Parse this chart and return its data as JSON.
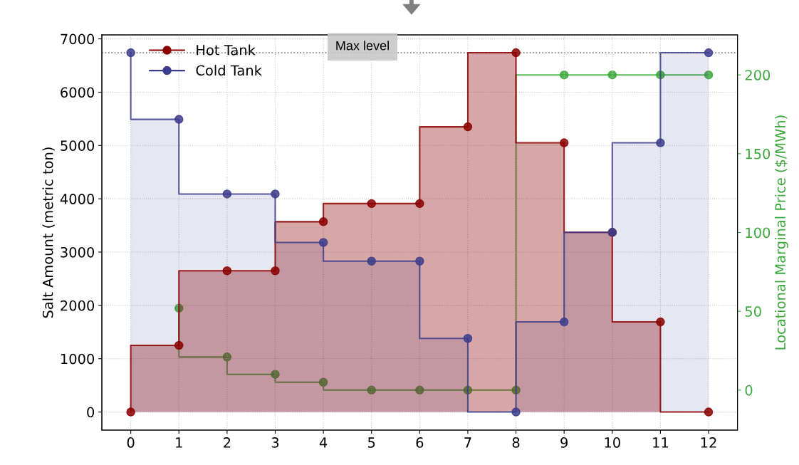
{
  "chart_data": {
    "type": "step",
    "ylabel": "Salt Amount (metric ton)",
    "y2label": "Locational Marginal Price ($/MWh)",
    "x": [
      0,
      1,
      2,
      3,
      4,
      5,
      6,
      7,
      8,
      9,
      10,
      11,
      12
    ],
    "series": [
      {
        "name": "Hot Tank",
        "type": "step",
        "color": "#8b0000",
        "values": [
          0,
          1250,
          2650,
          2650,
          3570,
          3910,
          3910,
          5350,
          6740,
          5050,
          3370,
          1690,
          0
        ]
      },
      {
        "name": "Cold Tank",
        "type": "step",
        "color": "#3c3c8c",
        "values": [
          6740,
          5490,
          4090,
          4090,
          3180,
          2830,
          2830,
          1380,
          0,
          1690,
          3370,
          5050,
          6740
        ]
      },
      {
        "type": "step",
        "axis": "y2",
        "color": "#3aa83a",
        "x": [
          1,
          2,
          3,
          4,
          5,
          6,
          7,
          8,
          9,
          10,
          11,
          12
        ],
        "values": [
          52,
          21,
          10,
          5,
          0,
          0,
          0,
          0,
          200,
          200,
          200,
          200
        ]
      }
    ],
    "xlim": [
      -0.6,
      12.6
    ],
    "xticks": [
      0,
      1,
      2,
      3,
      4,
      5,
      6,
      7,
      8,
      9,
      10,
      11,
      12
    ],
    "ylim": [
      -340,
      7075
    ],
    "yticks": [
      0,
      1000,
      2000,
      3000,
      4000,
      5000,
      6000,
      7000
    ],
    "y2lim": [
      -25.4,
      225.4
    ],
    "y2ticks": [
      0,
      50,
      100,
      150,
      200
    ],
    "ref_lines": [
      {
        "axis": "y",
        "value": 6740,
        "label": "Max level",
        "color": "#808080",
        "line_style": "dotted"
      }
    ],
    "grid": true,
    "legend": "top left",
    "marker": "circle"
  }
}
